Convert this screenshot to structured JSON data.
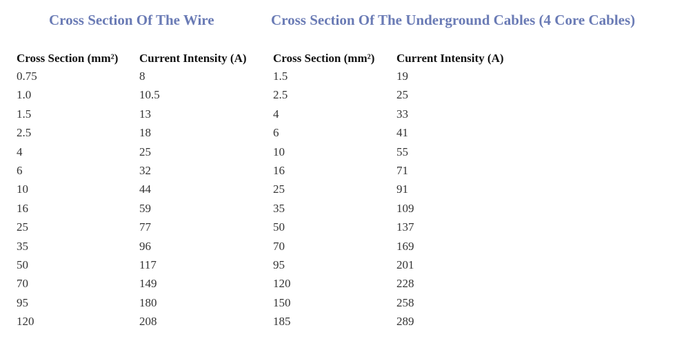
{
  "titles": {
    "wire": "Cross Section Of The Wire",
    "cable": "Cross Section Of The Underground Cables (4 Core Cables)"
  },
  "headers": [
    "Cross Section (mm²)",
    "Current Intensity (A)",
    "Cross Section (mm²)",
    "Current Intensity (A)"
  ],
  "rows": [
    [
      "0.75",
      "8",
      "1.5",
      "19"
    ],
    [
      "1.0",
      "10.5",
      "2.5",
      "25"
    ],
    [
      "1.5",
      "13",
      "4",
      "33"
    ],
    [
      "2.5",
      "18",
      "6",
      "41"
    ],
    [
      "4",
      "25",
      "10",
      "55"
    ],
    [
      "6",
      "32",
      "16",
      "71"
    ],
    [
      "10",
      "44",
      "25",
      "91"
    ],
    [
      "16",
      "59",
      "35",
      "109"
    ],
    [
      "25",
      "77",
      "50",
      "137"
    ],
    [
      "35",
      "96",
      "70",
      "169"
    ],
    [
      "50",
      "117",
      "95",
      "201"
    ],
    [
      "70",
      "149",
      "120",
      "228"
    ],
    [
      "95",
      "180",
      "150",
      "258"
    ],
    [
      "120",
      "208",
      "185",
      "289"
    ]
  ],
  "colors": {
    "title": "#6a7bb5",
    "header": "#111111",
    "text": "#333333"
  }
}
